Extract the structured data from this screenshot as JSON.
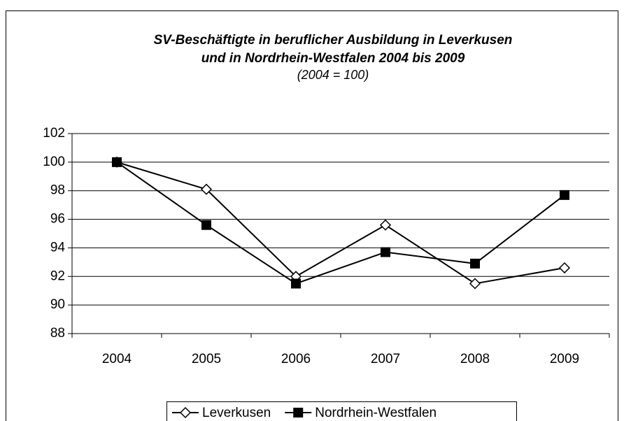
{
  "chart_data": {
    "type": "line",
    "title": [
      "SV-Beschäftigte in beruflicher Ausbildung in Leverkusen",
      "und in Nordrhein-Westfalen 2004 bis 2009"
    ],
    "subtitle": "(2004 = 100)",
    "categories": [
      "2004",
      "2005",
      "2006",
      "2007",
      "2008",
      "2009"
    ],
    "series": [
      {
        "name": "Leverkusen",
        "color": "#000000",
        "marker": "diamond",
        "values": [
          100,
          98.1,
          92.0,
          95.6,
          91.5,
          92.6
        ]
      },
      {
        "name": "Nordrhein-Westfalen",
        "color": "#000000",
        "marker": "square",
        "values": [
          100,
          95.6,
          91.5,
          93.7,
          92.9,
          97.7
        ]
      }
    ],
    "ylim": [
      88,
      102
    ],
    "yticks": [
      88,
      90,
      92,
      94,
      96,
      98,
      100,
      102
    ],
    "grid": true,
    "legend": "bottom"
  }
}
